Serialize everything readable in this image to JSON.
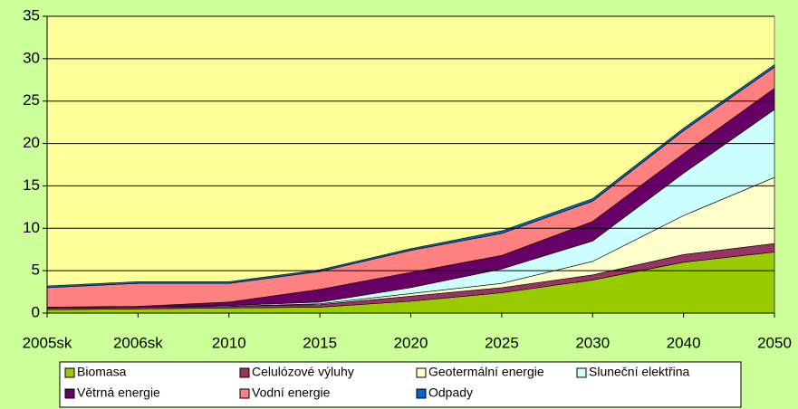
{
  "chart_data": {
    "type": "stacked_area",
    "categories": [
      "2005sk",
      "2006sk",
      "2010",
      "2015",
      "2020",
      "2025",
      "2030",
      "2040",
      "2050"
    ],
    "series": [
      {
        "name": "Biomasa",
        "color": "#99cc00",
        "values": [
          0.4,
          0.5,
          0.6,
          0.7,
          1.4,
          2.4,
          3.9,
          6.0,
          7.2
        ]
      },
      {
        "name": "Celulózové výluhy",
        "color": "#993366",
        "values": [
          0.2,
          0.2,
          0.2,
          0.3,
          0.6,
          0.6,
          0.6,
          0.9,
          1.0
        ]
      },
      {
        "name": "Geotermální energie",
        "color": "#ffffcc",
        "values": [
          0,
          0,
          0,
          0.1,
          0.3,
          0.5,
          1.6,
          4.6,
          7.8
        ]
      },
      {
        "name": "Sluneční elektřina",
        "color": "#ccffff",
        "values": [
          0,
          0,
          0.1,
          0.2,
          0.7,
          1.7,
          2.4,
          5.0,
          8.0
        ]
      },
      {
        "name": "Větrná energie",
        "color": "#660066",
        "values": [
          0.1,
          0.1,
          0.4,
          1.5,
          1.8,
          1.6,
          2.3,
          2.3,
          2.5
        ]
      },
      {
        "name": "Vodní energie",
        "color": "#ff8080",
        "values": [
          2.3,
          2.7,
          2.2,
          2.1,
          2.6,
          2.6,
          2.4,
          2.7,
          2.5
        ]
      },
      {
        "name": "Odpady",
        "color": "#0066cc",
        "values": [
          0.2,
          0.2,
          0.2,
          0.2,
          0.2,
          0.3,
          0.3,
          0.3,
          0.3
        ]
      }
    ],
    "ylim": [
      0,
      35
    ],
    "yticks": [
      0,
      5,
      10,
      15,
      20,
      25,
      30,
      35
    ],
    "grid": true,
    "legend": "bottom"
  }
}
